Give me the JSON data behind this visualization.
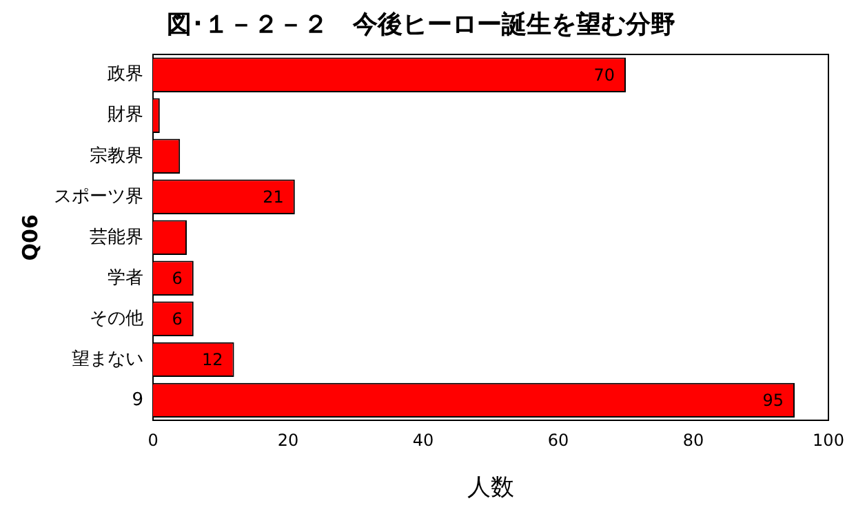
{
  "chart_data": {
    "type": "bar",
    "orientation": "horizontal",
    "title": "図･１－２－２　今後ヒーロー誕生を望む分野",
    "xlabel": "人数",
    "ylabel": "Q06",
    "categories": [
      "政界",
      "財界",
      "宗教界",
      "スポーツ界",
      "芸能界",
      "学者",
      "その他",
      "望まない",
      "9"
    ],
    "values": [
      70,
      1,
      4,
      21,
      5,
      6,
      6,
      12,
      95
    ],
    "value_labels": [
      "70",
      null,
      null,
      "21",
      null,
      "6",
      "6",
      "12",
      "95"
    ],
    "color": "#ff0000",
    "xlim": [
      0,
      100
    ],
    "xticks": [
      0,
      20,
      40,
      60,
      80,
      100
    ],
    "grid": false,
    "legend": false
  }
}
